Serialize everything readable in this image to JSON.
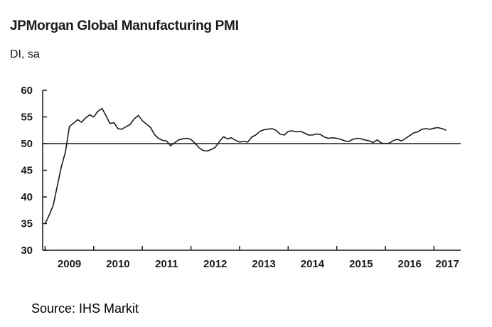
{
  "header": {
    "title": "JPMorgan Global Manufacturing PMI",
    "subtitle": "DI, sa"
  },
  "footer": {
    "source": "Source: IHS Markit"
  },
  "chart_data": {
    "type": "line",
    "title": "JPMorgan Global Manufacturing PMI",
    "subtitle": "DI, sa",
    "xlabel": "",
    "ylabel": "",
    "ylim": [
      30,
      60
    ],
    "y_ticks": [
      30,
      35,
      40,
      45,
      50,
      55,
      60
    ],
    "x_range": [
      2008.95,
      2017.55
    ],
    "x_tick_labels": [
      "2009",
      "2010",
      "2011",
      "2012",
      "2013",
      "2014",
      "2015",
      "2016",
      "2017"
    ],
    "reference_line": 50,
    "grid": false,
    "series": [
      {
        "name": "JPMorgan Global Manufacturing PMI",
        "color": "#1a1a1a",
        "x": [
          2009.0,
          2009.08,
          2009.17,
          2009.25,
          2009.33,
          2009.42,
          2009.5,
          2009.58,
          2009.67,
          2009.75,
          2009.83,
          2009.92,
          2010.0,
          2010.08,
          2010.17,
          2010.25,
          2010.33,
          2010.42,
          2010.5,
          2010.58,
          2010.67,
          2010.75,
          2010.83,
          2010.92,
          2011.0,
          2011.08,
          2011.17,
          2011.25,
          2011.33,
          2011.42,
          2011.5,
          2011.58,
          2011.67,
          2011.75,
          2011.83,
          2011.92,
          2012.0,
          2012.08,
          2012.17,
          2012.25,
          2012.33,
          2012.42,
          2012.5,
          2012.58,
          2012.67,
          2012.75,
          2012.83,
          2012.92,
          2013.0,
          2013.08,
          2013.17,
          2013.25,
          2013.33,
          2013.42,
          2013.5,
          2013.58,
          2013.67,
          2013.75,
          2013.83,
          2013.92,
          2014.0,
          2014.08,
          2014.17,
          2014.25,
          2014.33,
          2014.42,
          2014.5,
          2014.58,
          2014.67,
          2014.75,
          2014.83,
          2014.92,
          2015.0,
          2015.08,
          2015.17,
          2015.25,
          2015.33,
          2015.42,
          2015.5,
          2015.58,
          2015.67,
          2015.75,
          2015.83,
          2015.92,
          2016.0,
          2016.08,
          2016.17,
          2016.25,
          2016.33,
          2016.42,
          2016.5,
          2016.58,
          2016.67,
          2016.75,
          2016.83,
          2016.92,
          2017.0,
          2017.08,
          2017.17,
          2017.25
        ],
        "values": [
          35.0,
          36.5,
          38.5,
          42.0,
          45.5,
          48.5,
          53.2,
          53.8,
          54.5,
          54.0,
          54.8,
          55.4,
          55.0,
          56.0,
          56.6,
          55.3,
          53.8,
          53.9,
          52.8,
          52.7,
          53.2,
          53.6,
          54.6,
          55.3,
          54.3,
          53.7,
          53.0,
          51.7,
          51.0,
          50.6,
          50.5,
          49.6,
          50.2,
          50.7,
          50.9,
          51.0,
          50.8,
          50.1,
          49.2,
          48.7,
          48.6,
          48.9,
          49.3,
          50.3,
          51.3,
          50.9,
          51.1,
          50.6,
          50.3,
          50.4,
          50.3,
          51.2,
          51.6,
          52.3,
          52.6,
          52.7,
          52.8,
          52.5,
          51.8,
          51.6,
          52.3,
          52.4,
          52.2,
          52.3,
          52.0,
          51.6,
          51.6,
          51.8,
          51.7,
          51.2,
          51.0,
          51.1,
          51.0,
          50.8,
          50.5,
          50.4,
          50.8,
          51.0,
          50.9,
          50.7,
          50.5,
          50.2,
          50.7,
          50.1,
          50.0,
          50.1,
          50.6,
          50.8,
          50.5,
          51.0,
          51.5,
          52.0,
          52.2,
          52.7,
          52.8,
          52.7,
          52.9,
          53.0,
          52.8,
          52.5
        ]
      }
    ]
  }
}
